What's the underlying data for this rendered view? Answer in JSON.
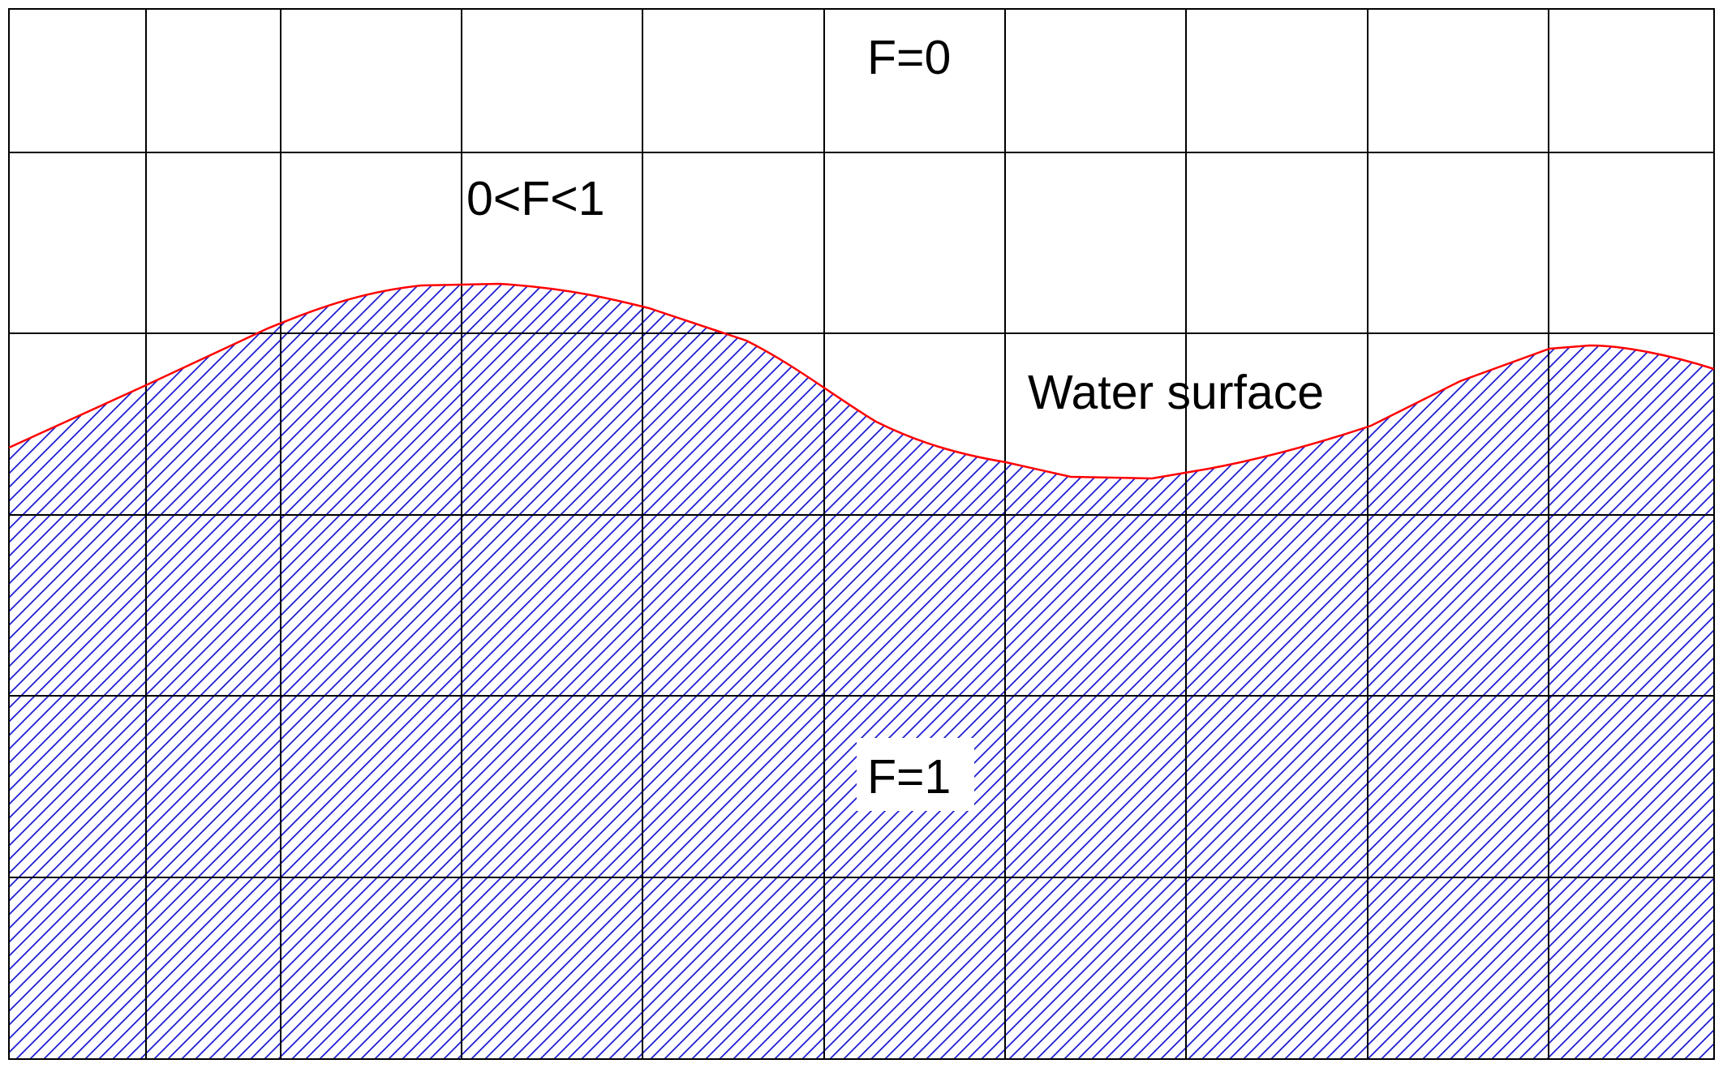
{
  "labels": {
    "empty_cells": "F=0",
    "interface_cells": "0<F<1",
    "surface": "Water surface",
    "full_cells": "F=1"
  },
  "colors": {
    "grid": "#000000",
    "hatch": "#1f1fd2",
    "surface_line": "#ff0000",
    "background": "#ffffff"
  }
}
